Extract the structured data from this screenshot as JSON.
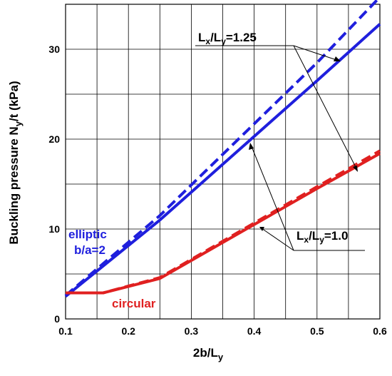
{
  "chart_data": {
    "type": "line",
    "xlabel": "2b/L_y",
    "ylabel": "Buckling pressure N_y/t (kPa)",
    "xlim": [
      0.1,
      0.6
    ],
    "ylim": [
      0,
      35
    ],
    "xticks": [
      "0.1",
      "0.2",
      "0.3",
      "0.4",
      "0.5",
      "0.6"
    ],
    "yticks": [
      "0",
      "10",
      "20",
      "30"
    ],
    "grid": true,
    "series": [
      {
        "group": "elliptic",
        "ratio": "1.0",
        "color": "#1f1fdd",
        "dashed": false,
        "x": [
          0.1,
          0.25,
          0.5,
          0.6
        ],
        "y": [
          2.5,
          11.0,
          26.5,
          32.8
        ]
      },
      {
        "group": "elliptic",
        "ratio": "1.25",
        "color": "#1f1fdd",
        "dashed": true,
        "x": [
          0.1,
          0.25,
          0.5,
          0.6
        ],
        "y": [
          2.6,
          11.5,
          28.5,
          35.8
        ]
      },
      {
        "group": "circular",
        "ratio": "1.0",
        "color": "#e02020",
        "dashed": false,
        "x": [
          0.1,
          0.16,
          0.25,
          0.5,
          0.6
        ],
        "y": [
          2.9,
          2.9,
          4.5,
          14.5,
          18.4
        ]
      },
      {
        "group": "circular",
        "ratio": "1.25",
        "color": "#e02020",
        "dashed": true,
        "x": [
          0.1,
          0.16,
          0.25,
          0.5,
          0.6
        ],
        "y": [
          2.9,
          2.9,
          4.6,
          14.7,
          18.7
        ]
      }
    ],
    "annotations": {
      "elliptic_line1": "elliptic",
      "elliptic_line2": "b/a=2",
      "circular": "circular",
      "ratio_125": "L_x/L_y=1.25",
      "ratio_10": "L_x/L_y=1.0"
    }
  }
}
